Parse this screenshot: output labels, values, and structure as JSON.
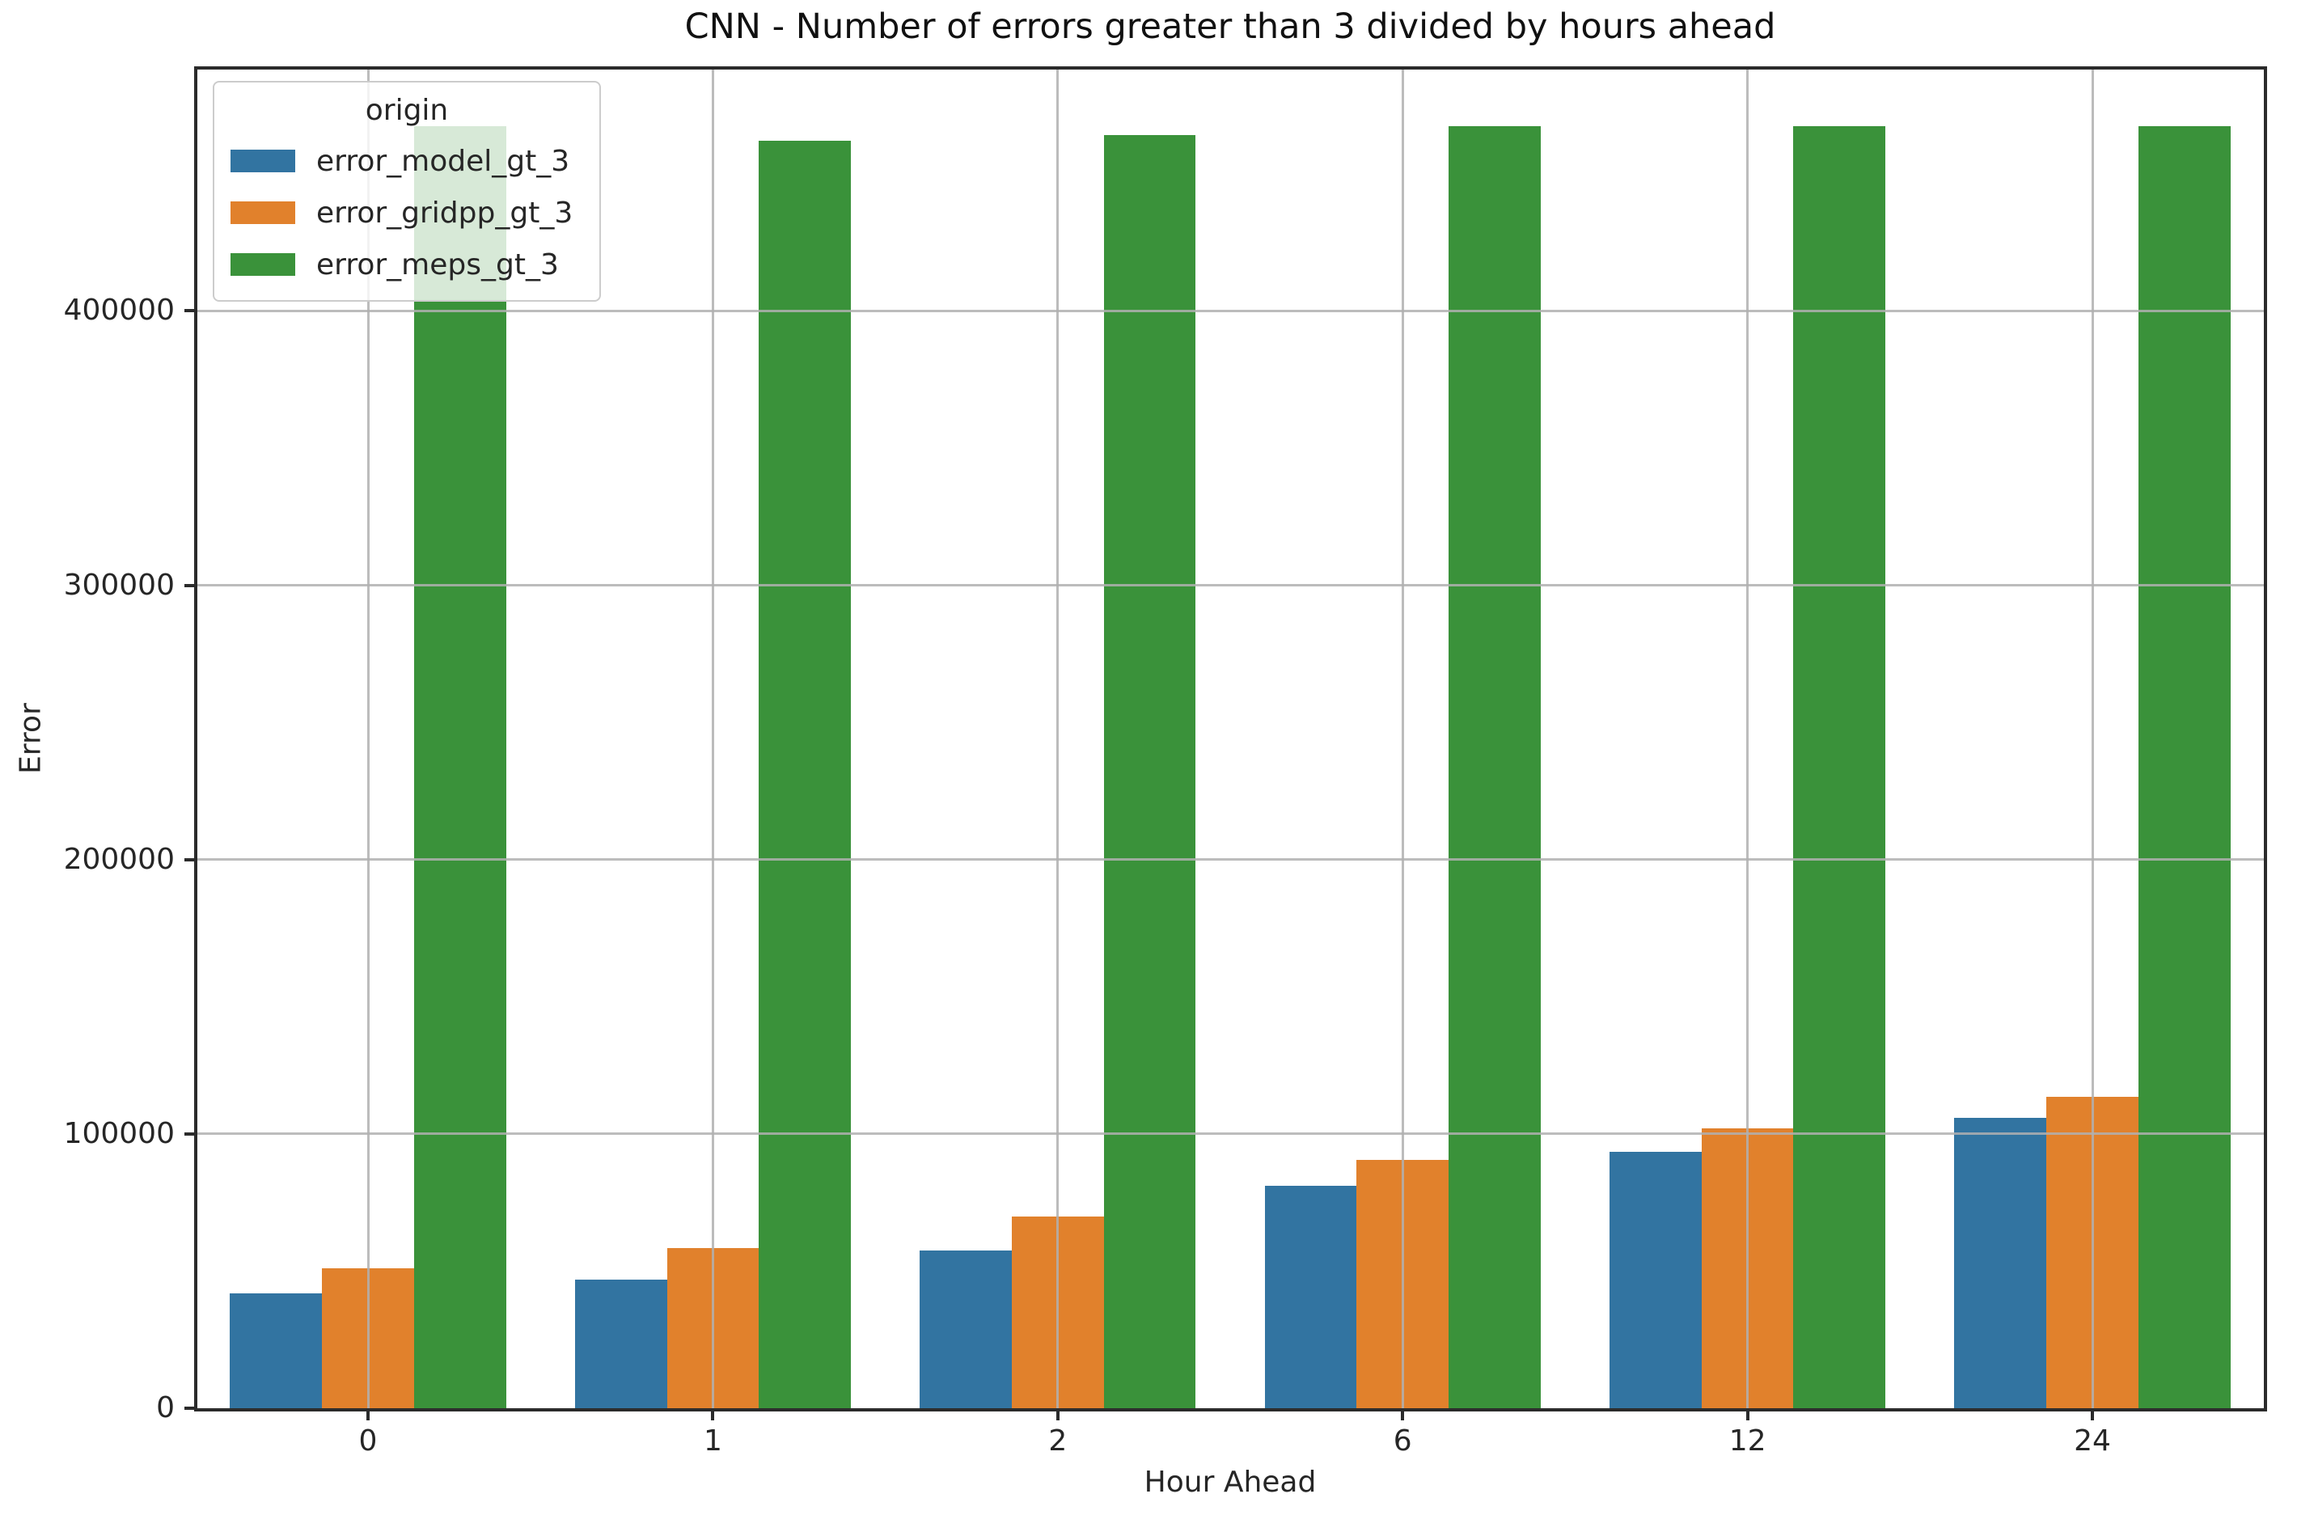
{
  "figure": {
    "title": "CNN - Number of errors greater than 3 divided by hours ahead",
    "xlabel": "Hour Ahead",
    "ylabel": "Error"
  },
  "chart_data": {
    "type": "bar",
    "title": "CNN - Number of errors greater than 3 divided by hours ahead",
    "xlabel": "Hour Ahead",
    "ylabel": "Error",
    "legend_title": "origin",
    "legend_position": "upper left",
    "grid": true,
    "categories": [
      "0",
      "1",
      "2",
      "6",
      "12",
      "24"
    ],
    "series": [
      {
        "name": "error_model_gt_3",
        "color": "#3274a1",
        "values": [
          42000,
          47000,
          57500,
          81000,
          93500,
          106000
        ]
      },
      {
        "name": "error_gridpp_gt_3",
        "color": "#e1812c",
        "values": [
          51000,
          58500,
          70000,
          90500,
          102000,
          113500
        ]
      },
      {
        "name": "error_meps_gt_3",
        "color": "#3a923a",
        "values": [
          467500,
          462000,
          464000,
          467500,
          467500,
          467500
        ]
      }
    ],
    "ylim": [
      0,
      488000
    ],
    "yticks": [
      0,
      100000,
      200000,
      300000,
      400000
    ]
  }
}
